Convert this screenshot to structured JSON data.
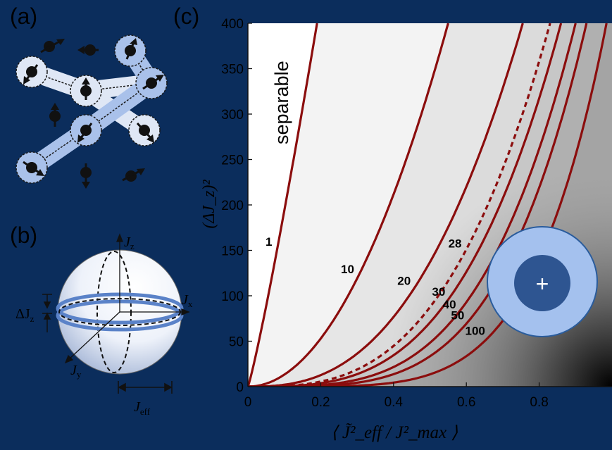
{
  "panels": {
    "a": "(a)",
    "b": "(b)",
    "c": "(c)"
  },
  "sphere": {
    "axis_z": "J",
    "axis_z_sub": "z",
    "axis_x": "J",
    "axis_x_sub": "x",
    "axis_y": "J",
    "axis_y_sub": "y",
    "delta_label": "ΔJ",
    "delta_sub": "z",
    "width_label": "J",
    "width_sub": "eff"
  },
  "inset_symbol": "+",
  "chart_data": {
    "type": "line",
    "xlim": [
      0,
      1.0
    ],
    "ylim": [
      0,
      400
    ],
    "x_ticks": [
      "0",
      "0.2",
      "0.4",
      "0.6",
      "0.8"
    ],
    "y_ticks": [
      "0",
      "50",
      "100",
      "150",
      "200",
      "250",
      "300",
      "350",
      "400"
    ],
    "ylabel": "(ΔJ_z)²",
    "xlabel": "⟨ J̃²_eff / J²_max ⟩",
    "region_label": "separable",
    "curves": [
      {
        "label": "1",
        "exponent": 1.13,
        "x_at_400": 0.19,
        "dashed": false
      },
      {
        "label": "10",
        "exponent": 2.0,
        "x_at_400": 0.55,
        "dashed": false
      },
      {
        "label": "20",
        "exponent": 2.6,
        "x_at_400": 0.755,
        "dashed": false
      },
      {
        "label": "28",
        "exponent": 3.0,
        "x_at_400": 0.83,
        "dashed": true
      },
      {
        "label": "30",
        "exponent": 3.2,
        "x_at_400": 0.86,
        "dashed": false
      },
      {
        "label": "40",
        "exponent": 3.6,
        "x_at_400": 0.9,
        "dashed": false
      },
      {
        "label": "50",
        "exponent": 4.0,
        "x_at_400": 0.93,
        "dashed": false
      },
      {
        "label": "100",
        "exponent": 5.0,
        "x_at_400": 0.985,
        "dashed": false
      }
    ]
  }
}
